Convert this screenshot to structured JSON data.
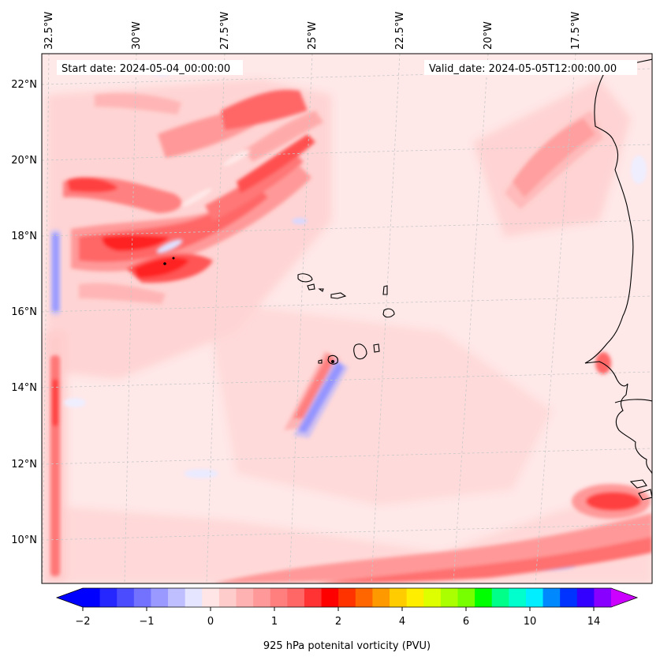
{
  "header": {
    "start_date": "Start date: 2024-05-04_00:00:00",
    "valid_date": "Valid_date: 2024-05-05T12:00:00.00"
  },
  "lon_labels": [
    "32.5°W",
    "30°W",
    "27.5°W",
    "25°W",
    "22.5°W",
    "20°W",
    "17.5°W"
  ],
  "lat_labels": [
    "22°N",
    "20°N",
    "18°N",
    "16°N",
    "14°N",
    "12°N",
    "10°N"
  ],
  "colorbar": {
    "label": "925 hPa potenital vorticity (PVU)",
    "tick_labels": [
      "−2",
      "−1",
      "0",
      "1",
      "2",
      "4",
      "6",
      "10",
      "14"
    ],
    "colors": [
      "#0000ff",
      "#2626ff",
      "#4c4cff",
      "#7272ff",
      "#9999ff",
      "#bfbfff",
      "#e5e5ff",
      "#ffe5e5",
      "#ffcccc",
      "#ffb2b2",
      "#ff9999",
      "#ff7f7f",
      "#ff6666",
      "#ff3333",
      "#ff0000",
      "#ff3300",
      "#ff6600",
      "#ff9900",
      "#ffcc00",
      "#ffee00",
      "#ddff00",
      "#aaff00",
      "#77ff00",
      "#00ff00",
      "#00ff88",
      "#00ffcc",
      "#00eeff",
      "#0088ff",
      "#0033ff",
      "#3300ff",
      "#8800ff"
    ],
    "under_color": "#0000ff",
    "over_color": "#cc00ff"
  },
  "map": {
    "background_fill": "#ffe8e8",
    "coastline_color": "#000000",
    "gridline_color": "#c8c8c8"
  }
}
